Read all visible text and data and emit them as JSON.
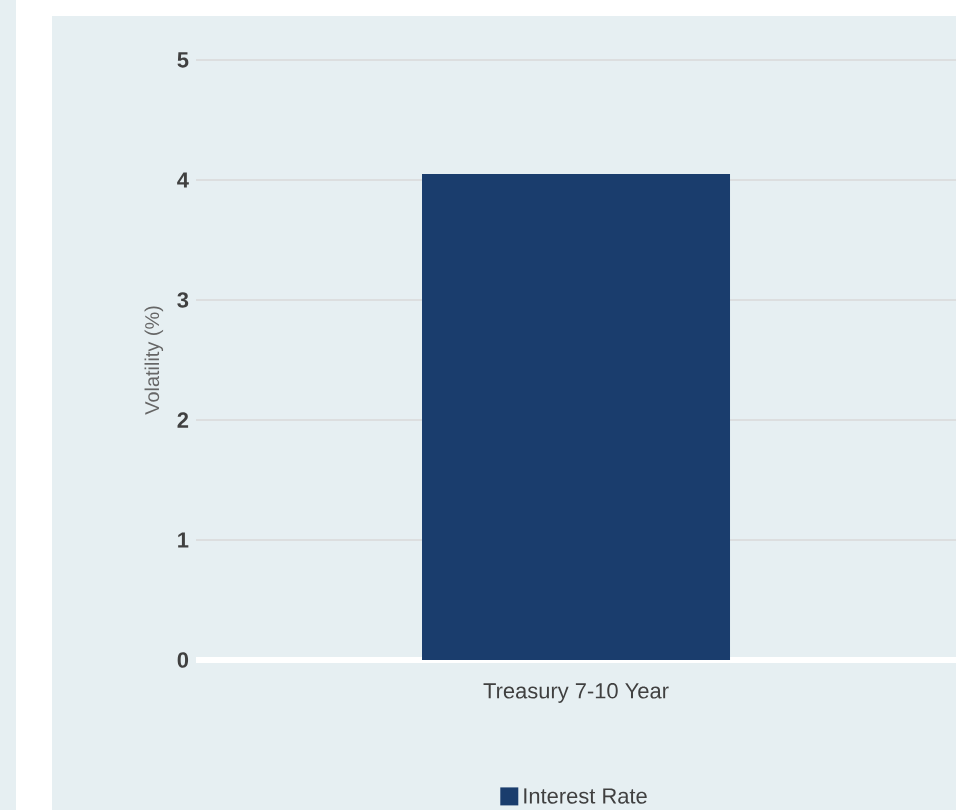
{
  "chart_data": {
    "type": "bar",
    "ylabel": "Volatility (%)",
    "categories": [
      "Treasury 7-10 Year"
    ],
    "series": [
      {
        "name": "Interest Rate",
        "color": "#1a3d6d",
        "values": [
          4.05
        ]
      }
    ],
    "ylim": [
      0,
      5
    ],
    "yticks": [
      0,
      1,
      2,
      3,
      4,
      5
    ],
    "grid": "y",
    "legend": "bottom"
  }
}
